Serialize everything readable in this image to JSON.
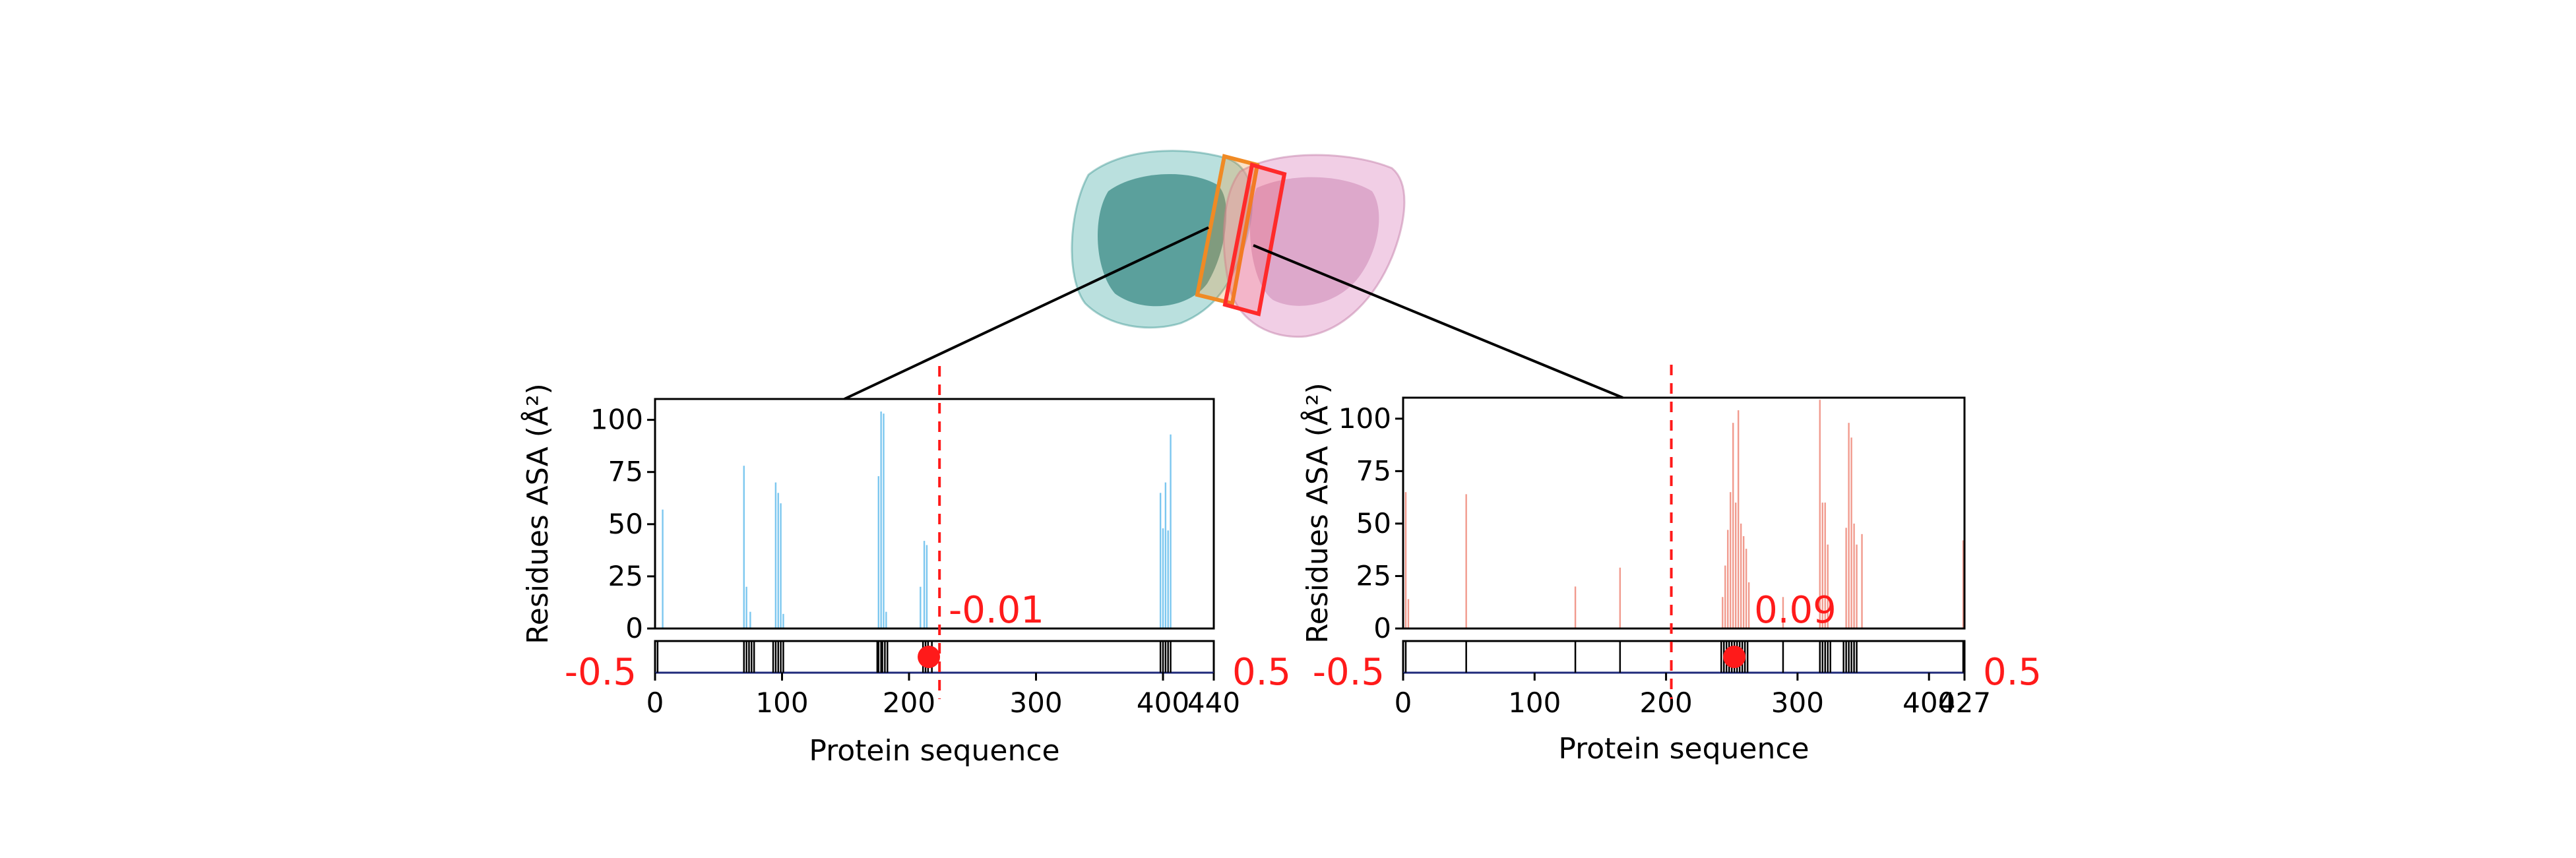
{
  "colors": {
    "panel1_bars": "#7cc7ef",
    "panel2_bars": "#f19a8d",
    "marker": "#ff1a1a",
    "protein_left": "#3aa7a0",
    "protein_right": "#e6a6cf",
    "box_orange": "#f08a24",
    "box_red": "#ff2a2a"
  },
  "structure": {
    "description_icon": "protein-dimer-structure-icon"
  },
  "chart_data": [
    {
      "type": "bar",
      "ylabel": "Residues ASA (Å²)",
      "xlabel": "Protein sequence",
      "xlim": [
        0,
        440
      ],
      "ylim": [
        0,
        110
      ],
      "x_ticks": [
        "0",
        "100",
        "200",
        "300",
        "400",
        "440"
      ],
      "x_tick_values": [
        0,
        100,
        200,
        300,
        400,
        440
      ],
      "y_ticks": [
        "0",
        "25",
        "50",
        "75",
        "100"
      ],
      "y_tick_values": [
        0,
        25,
        50,
        75,
        100
      ],
      "bars": [
        {
          "x": 6,
          "y": 57
        },
        {
          "x": 70,
          "y": 78
        },
        {
          "x": 72,
          "y": 20
        },
        {
          "x": 75,
          "y": 8
        },
        {
          "x": 95,
          "y": 70
        },
        {
          "x": 97,
          "y": 65
        },
        {
          "x": 99,
          "y": 60
        },
        {
          "x": 101,
          "y": 7
        },
        {
          "x": 176,
          "y": 73
        },
        {
          "x": 178,
          "y": 104
        },
        {
          "x": 180,
          "y": 103
        },
        {
          "x": 182,
          "y": 8
        },
        {
          "x": 209,
          "y": 20
        },
        {
          "x": 212,
          "y": 42
        },
        {
          "x": 214,
          "y": 40
        },
        {
          "x": 398,
          "y": 65
        },
        {
          "x": 400,
          "y": 48
        },
        {
          "x": 402,
          "y": 70
        },
        {
          "x": 404,
          "y": 47
        },
        {
          "x": 406,
          "y": 93
        }
      ],
      "interface_residues": [
        2,
        70,
        72,
        74,
        76,
        78,
        93,
        95,
        97,
        99,
        101,
        175,
        176,
        178,
        179,
        181,
        183,
        211,
        213,
        215,
        218,
        398,
        400,
        402,
        404,
        406
      ],
      "index_bar": {
        "range": [
          -0.5,
          0.5
        ],
        "min_label": "-0.5",
        "max_label": "0.5",
        "value": -0.01,
        "value_label": "-0.01"
      },
      "divider_x": 224
    },
    {
      "type": "bar",
      "ylabel": "Residues ASA (Å²)",
      "xlabel": "Protein sequence",
      "xlim": [
        0,
        427
      ],
      "ylim": [
        0,
        110
      ],
      "x_ticks": [
        "0",
        "100",
        "200",
        "300",
        "400",
        "427"
      ],
      "x_tick_values": [
        0,
        100,
        200,
        300,
        400,
        427
      ],
      "y_ticks": [
        "0",
        "25",
        "50",
        "75",
        "100"
      ],
      "y_tick_values": [
        0,
        25,
        50,
        75,
        100
      ],
      "bars": [
        {
          "x": 2,
          "y": 65
        },
        {
          "x": 4,
          "y": 14
        },
        {
          "x": 48,
          "y": 64
        },
        {
          "x": 131,
          "y": 20
        },
        {
          "x": 165,
          "y": 29
        },
        {
          "x": 243,
          "y": 15
        },
        {
          "x": 245,
          "y": 30
        },
        {
          "x": 247,
          "y": 47
        },
        {
          "x": 249,
          "y": 65
        },
        {
          "x": 251,
          "y": 98
        },
        {
          "x": 253,
          "y": 60
        },
        {
          "x": 255,
          "y": 104
        },
        {
          "x": 257,
          "y": 50
        },
        {
          "x": 259,
          "y": 44
        },
        {
          "x": 261,
          "y": 38
        },
        {
          "x": 263,
          "y": 22
        },
        {
          "x": 289,
          "y": 15
        },
        {
          "x": 317,
          "y": 109
        },
        {
          "x": 319,
          "y": 60
        },
        {
          "x": 321,
          "y": 60
        },
        {
          "x": 323,
          "y": 40
        },
        {
          "x": 337,
          "y": 48
        },
        {
          "x": 339,
          "y": 98
        },
        {
          "x": 341,
          "y": 91
        },
        {
          "x": 343,
          "y": 50
        },
        {
          "x": 345,
          "y": 40
        },
        {
          "x": 349,
          "y": 45
        },
        {
          "x": 426,
          "y": 42
        }
      ],
      "interface_residues": [
        2,
        48,
        131,
        165,
        242,
        244,
        246,
        248,
        250,
        252,
        254,
        256,
        258,
        260,
        262,
        289,
        317,
        319,
        321,
        323,
        325,
        335,
        337,
        339,
        341,
        343,
        345,
        426
      ],
      "index_bar": {
        "range": [
          -0.5,
          0.5
        ],
        "min_label": "-0.5",
        "max_label": "0.5",
        "value": 0.09,
        "value_label": "0.09"
      },
      "divider_x": 204
    }
  ]
}
